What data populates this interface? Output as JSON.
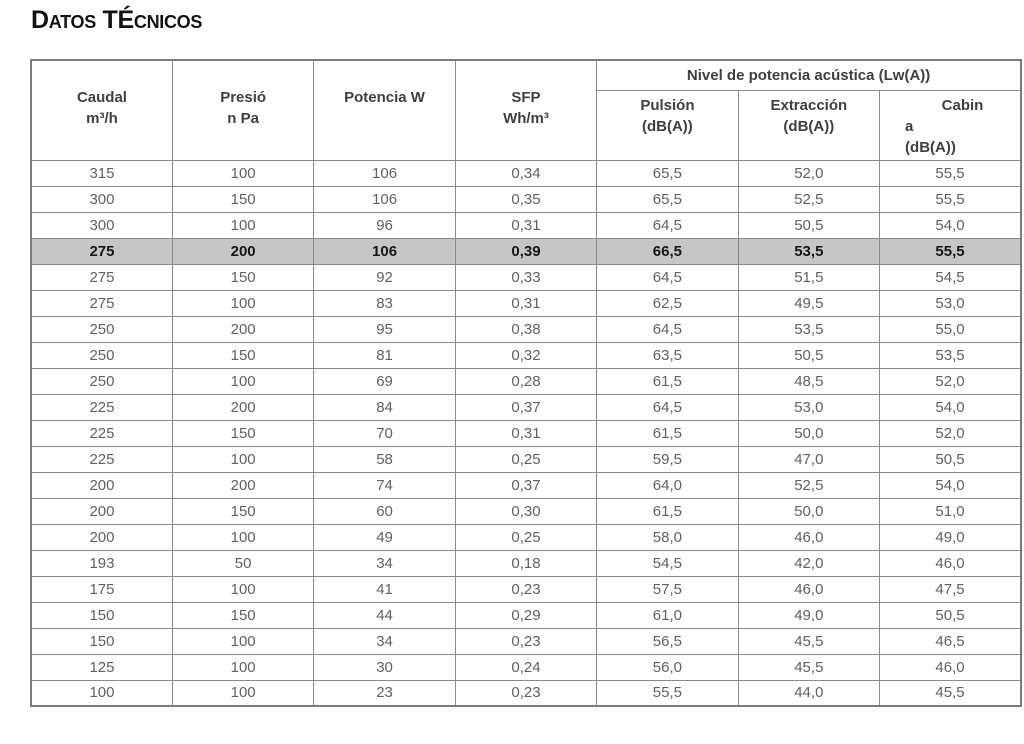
{
  "page": {
    "title": "Datos TÉcnicos"
  },
  "table": {
    "group_header": "Nivel de potencia acústica (Lw(A))",
    "columns": [
      {
        "label": "Caudal\nm³/h"
      },
      {
        "label": "Presió\nn Pa"
      },
      {
        "label": "Potencia W"
      },
      {
        "label": "SFP\nWh/m³"
      }
    ],
    "sub_columns": [
      {
        "label": "Pulsión\n(dB(A))"
      },
      {
        "label": "Extracción\n(dB(A))"
      },
      {
        "lines": [
          "Cabin",
          "a",
          "(dB(A))"
        ]
      }
    ],
    "highlighted_row": 3,
    "rows": [
      [
        "315",
        "100",
        "106",
        "0,34",
        "65,5",
        "52,0",
        "55,5"
      ],
      [
        "300",
        "150",
        "106",
        "0,35",
        "65,5",
        "52,5",
        "55,5"
      ],
      [
        "300",
        "100",
        "96",
        "0,31",
        "64,5",
        "50,5",
        "54,0"
      ],
      [
        "275",
        "200",
        "106",
        "0,39",
        "66,5",
        "53,5",
        "55,5"
      ],
      [
        "275",
        "150",
        "92",
        "0,33",
        "64,5",
        "51,5",
        "54,5"
      ],
      [
        "275",
        "100",
        "83",
        "0,31",
        "62,5",
        "49,5",
        "53,0"
      ],
      [
        "250",
        "200",
        "95",
        "0,38",
        "64,5",
        "53,5",
        "55,0"
      ],
      [
        "250",
        "150",
        "81",
        "0,32",
        "63,5",
        "50,5",
        "53,5"
      ],
      [
        "250",
        "100",
        "69",
        "0,28",
        "61,5",
        "48,5",
        "52,0"
      ],
      [
        "225",
        "200",
        "84",
        "0,37",
        "64,5",
        "53,0",
        "54,0"
      ],
      [
        "225",
        "150",
        "70",
        "0,31",
        "61,5",
        "50,0",
        "52,0"
      ],
      [
        "225",
        "100",
        "58",
        "0,25",
        "59,5",
        "47,0",
        "50,5"
      ],
      [
        "200",
        "200",
        "74",
        "0,37",
        "64,0",
        "52,5",
        "54,0"
      ],
      [
        "200",
        "150",
        "60",
        "0,30",
        "61,5",
        "50,0",
        "51,0"
      ],
      [
        "200",
        "100",
        "49",
        "0,25",
        "58,0",
        "46,0",
        "49,0"
      ],
      [
        "193",
        "50",
        "34",
        "0,18",
        "54,5",
        "42,0",
        "46,0"
      ],
      [
        "175",
        "100",
        "41",
        "0,23",
        "57,5",
        "46,0",
        "47,5"
      ],
      [
        "150",
        "150",
        "44",
        "0,29",
        "61,0",
        "49,0",
        "50,5"
      ],
      [
        "150",
        "100",
        "34",
        "0,23",
        "56,5",
        "45,5",
        "46,5"
      ],
      [
        "125",
        "100",
        "30",
        "0,24",
        "56,0",
        "45,5",
        "46,0"
      ],
      [
        "100",
        "100",
        "23",
        "0,23",
        "55,5",
        "44,0",
        "45,5"
      ]
    ]
  },
  "colors": {
    "border": "#8a8a8a",
    "outer_border": "#7c7c7c",
    "header_text": "#3f3f3f",
    "data_text": "#616161",
    "highlight_bg": "#c6c6c6",
    "highlight_text": "#161616",
    "title_text": "#121212"
  }
}
